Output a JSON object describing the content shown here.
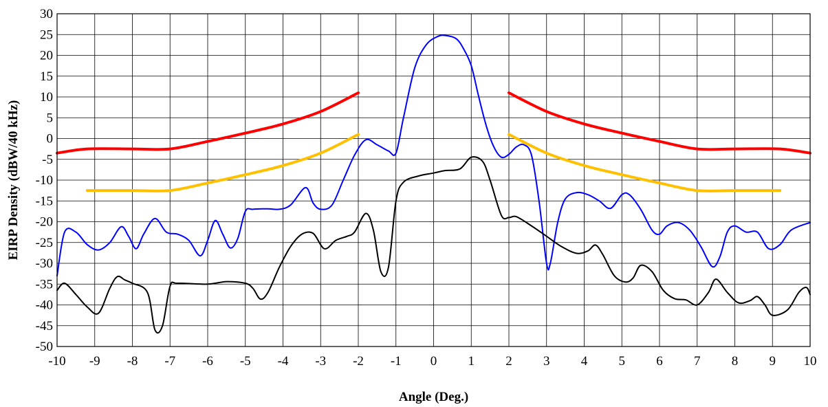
{
  "chart_data": {
    "type": "line",
    "title": "",
    "xlabel": "Angle (Deg.)",
    "ylabel": "EIRP Density (dBW/40 kHz)",
    "xlim": [
      -10,
      10
    ],
    "ylim": [
      -50,
      30
    ],
    "xticks": [
      -10,
      -9,
      -8,
      -7,
      -6,
      -5,
      -4,
      -3,
      -2,
      -1,
      0,
      1,
      2,
      3,
      4,
      5,
      6,
      7,
      8,
      9,
      10
    ],
    "yticks": [
      30,
      25,
      20,
      15,
      10,
      5,
      0,
      -5,
      -10,
      -15,
      -20,
      -25,
      -30,
      -35,
      -40,
      -45,
      -50
    ],
    "grid": true,
    "legend": "none",
    "series": [
      {
        "color": "#ff0000",
        "segments": [
          [
            [
              -10,
              -3.5
            ],
            [
              -9.2,
              -2.5
            ],
            [
              -8,
              -2.5
            ],
            [
              -7,
              -2.5
            ],
            [
              -6,
              -0.7
            ],
            [
              -5,
              1.3
            ],
            [
              -4,
              3.5
            ],
            [
              -3,
              6.5
            ],
            [
              -2,
              11
            ]
          ],
          [
            [
              2,
              11
            ],
            [
              3,
              6.5
            ],
            [
              4,
              3.5
            ],
            [
              5,
              1.3
            ],
            [
              6,
              -0.7
            ],
            [
              7,
              -2.5
            ],
            [
              8,
              -2.5
            ],
            [
              9.2,
              -2.5
            ],
            [
              10,
              -3.5
            ]
          ]
        ]
      },
      {
        "color": "#ffc000",
        "segments": [
          [
            [
              -9.2,
              -12.5
            ],
            [
              -8,
              -12.5
            ],
            [
              -7,
              -12.5
            ],
            [
              -6,
              -10.7
            ],
            [
              -5,
              -8.7
            ],
            [
              -4,
              -6.5
            ],
            [
              -3,
              -3.5
            ],
            [
              -2,
              1
            ]
          ],
          [
            [
              2,
              1
            ],
            [
              3,
              -3.5
            ],
            [
              4,
              -6.5
            ],
            [
              5,
              -8.7
            ],
            [
              6,
              -10.7
            ],
            [
              7,
              -12.5
            ],
            [
              8,
              -12.5
            ],
            [
              9.2,
              -12.5
            ]
          ]
        ]
      },
      {
        "color": "#0000ff",
        "segments": [
          [
            [
              -10,
              -33
            ],
            [
              -9.8,
              -22.5
            ],
            [
              -9.5,
              -22.5
            ],
            [
              -9.2,
              -25.5
            ],
            [
              -8.9,
              -26.8
            ],
            [
              -8.6,
              -25
            ],
            [
              -8.3,
              -21.2
            ],
            [
              -8.1,
              -23.5
            ],
            [
              -7.9,
              -26.5
            ],
            [
              -7.7,
              -23
            ],
            [
              -7.4,
              -19.2
            ],
            [
              -7.1,
              -22.5
            ],
            [
              -6.8,
              -23
            ],
            [
              -6.5,
              -24.5
            ],
            [
              -6.2,
              -28.2
            ],
            [
              -6,
              -24.5
            ],
            [
              -5.8,
              -19.7
            ],
            [
              -5.6,
              -23
            ],
            [
              -5.4,
              -26.3
            ],
            [
              -5.2,
              -24
            ],
            [
              -5,
              -17.5
            ],
            [
              -4.8,
              -17
            ],
            [
              -4.4,
              -16.9
            ],
            [
              -4.1,
              -17
            ],
            [
              -3.8,
              -16
            ],
            [
              -3.4,
              -11.8
            ],
            [
              -3.2,
              -15.5
            ],
            [
              -3,
              -17
            ],
            [
              -2.7,
              -16
            ],
            [
              -2.4,
              -10
            ],
            [
              -2.1,
              -4
            ],
            [
              -1.8,
              -0.3
            ],
            [
              -1.5,
              -1.5
            ],
            [
              -1.2,
              -3
            ],
            [
              -1,
              -3.5
            ],
            [
              -0.8,
              5
            ],
            [
              -0.5,
              17
            ],
            [
              -0.2,
              22.5
            ],
            [
              0.1,
              24.5
            ],
            [
              0.3,
              24.8
            ],
            [
              0.6,
              24
            ],
            [
              0.8,
              21.5
            ],
            [
              1,
              17.5
            ],
            [
              1.2,
              10
            ],
            [
              1.4,
              3
            ],
            [
              1.6,
              -2
            ],
            [
              1.8,
              -4.5
            ],
            [
              2,
              -3.8
            ],
            [
              2.2,
              -2
            ],
            [
              2.4,
              -1.5
            ],
            [
              2.6,
              -4
            ],
            [
              2.8,
              -15
            ],
            [
              3,
              -30
            ],
            [
              3.1,
              -30
            ],
            [
              3.3,
              -20
            ],
            [
              3.5,
              -14.5
            ],
            [
              3.8,
              -13
            ],
            [
              4.1,
              -13.5
            ],
            [
              4.4,
              -15
            ],
            [
              4.7,
              -16.8
            ],
            [
              5,
              -13.5
            ],
            [
              5.2,
              -13.5
            ],
            [
              5.5,
              -17
            ],
            [
              5.8,
              -22
            ],
            [
              6,
              -23
            ],
            [
              6.2,
              -21
            ],
            [
              6.5,
              -20.2
            ],
            [
              6.8,
              -22
            ],
            [
              7.1,
              -26
            ],
            [
              7.4,
              -30.8
            ],
            [
              7.6,
              -28.5
            ],
            [
              7.8,
              -22.5
            ],
            [
              8,
              -21
            ],
            [
              8.3,
              -22.5
            ],
            [
              8.6,
              -22.5
            ],
            [
              8.9,
              -26.5
            ],
            [
              9.2,
              -25.5
            ],
            [
              9.5,
              -22
            ],
            [
              10,
              -20.2
            ]
          ]
        ]
      },
      {
        "color": "#000000",
        "segments": [
          [
            [
              -10,
              -36.5
            ],
            [
              -9.8,
              -34.8
            ],
            [
              -9.5,
              -37.5
            ],
            [
              -9.2,
              -40.5
            ],
            [
              -8.9,
              -42
            ],
            [
              -8.6,
              -36
            ],
            [
              -8.4,
              -33.2
            ],
            [
              -8.2,
              -34
            ],
            [
              -8,
              -34.8
            ],
            [
              -7.6,
              -37
            ],
            [
              -7.4,
              -46
            ],
            [
              -7.2,
              -45
            ],
            [
              -7,
              -35.5
            ],
            [
              -6.8,
              -34.8
            ],
            [
              -6,
              -35
            ],
            [
              -5.5,
              -34.4
            ],
            [
              -5,
              -34.8
            ],
            [
              -4.8,
              -36
            ],
            [
              -4.6,
              -38.6
            ],
            [
              -4.4,
              -37
            ],
            [
              -4.1,
              -31
            ],
            [
              -3.8,
              -26
            ],
            [
              -3.5,
              -23
            ],
            [
              -3.2,
              -22.8
            ],
            [
              -2.9,
              -26.5
            ],
            [
              -2.6,
              -24.5
            ],
            [
              -2.3,
              -23.5
            ],
            [
              -2.1,
              -22.5
            ],
            [
              -1.8,
              -18
            ],
            [
              -1.6,
              -22
            ],
            [
              -1.4,
              -32
            ],
            [
              -1.2,
              -31
            ],
            [
              -1,
              -15
            ],
            [
              -0.8,
              -10.5
            ],
            [
              -0.4,
              -9
            ],
            [
              0,
              -8.3
            ],
            [
              0.3,
              -7.7
            ],
            [
              0.7,
              -7.3
            ],
            [
              1,
              -4.5
            ],
            [
              1.3,
              -5.5
            ],
            [
              1.5,
              -10
            ],
            [
              1.8,
              -18.5
            ],
            [
              2,
              -19
            ],
            [
              2.2,
              -18.8
            ],
            [
              2.6,
              -21
            ],
            [
              3,
              -23.5
            ],
            [
              3.4,
              -26
            ],
            [
              3.8,
              -27.6
            ],
            [
              4.1,
              -27
            ],
            [
              4.3,
              -25.6
            ],
            [
              4.5,
              -28
            ],
            [
              4.8,
              -33
            ],
            [
              5.1,
              -34.5
            ],
            [
              5.3,
              -33.5
            ],
            [
              5.5,
              -30.5
            ],
            [
              5.8,
              -32
            ],
            [
              6.1,
              -36.5
            ],
            [
              6.4,
              -38.5
            ],
            [
              6.7,
              -38.8
            ],
            [
              7,
              -40
            ],
            [
              7.3,
              -37
            ],
            [
              7.5,
              -33.8
            ],
            [
              7.8,
              -37
            ],
            [
              8.1,
              -39.5
            ],
            [
              8.4,
              -39
            ],
            [
              8.6,
              -38
            ],
            [
              8.8,
              -40
            ],
            [
              9,
              -42.5
            ],
            [
              9.4,
              -41.2
            ],
            [
              9.7,
              -37
            ],
            [
              9.9,
              -35.8
            ],
            [
              10,
              -37.5
            ]
          ]
        ]
      }
    ]
  }
}
